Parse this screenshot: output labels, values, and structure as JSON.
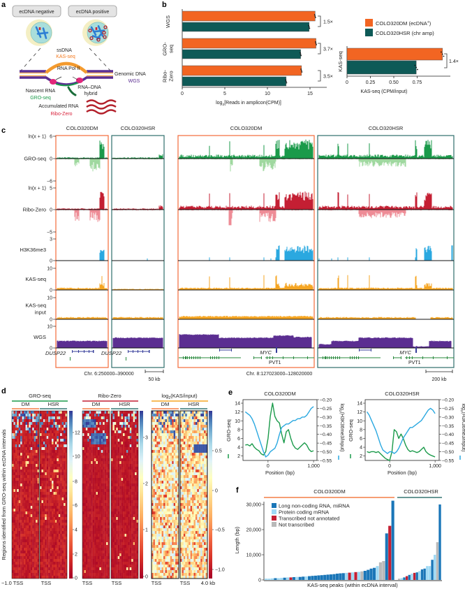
{
  "panel_labels": {
    "a": "a",
    "b": "b",
    "c": "c",
    "d": "d",
    "e": "e",
    "f": "f"
  },
  "colors": {
    "dm": "#f26522",
    "hsr": "#0e5a57",
    "gro": "#1a9a4a",
    "gro_neg": "#9fd89f",
    "ribo": "#c41f33",
    "ribo_neg": "#ee8c96",
    "h3k36me3": "#2aa8e0",
    "kas": "#f6a623",
    "wgs": "#5b2e91",
    "dm_box": "#f26a3a",
    "hsr_box": "#2e6e6c"
  },
  "panel_a": {
    "neg": "ecDNA negative",
    "pos": "ecDNA positive",
    "ssdna": "ssDNA",
    "kas": "KAS-seq",
    "polii": "RNA Pol II",
    "genomic": "Genomic DNA",
    "wgs": "WGS",
    "hybrid1": "RNA–DNA",
    "hybrid2": "hybrid",
    "nascent": "Nascent RNA",
    "gro": "GRO-seq",
    "accum": "Accumulated RNA",
    "ribo": "Ribo-Zero"
  },
  "chart_data": [
    {
      "id": "b-amplicon",
      "type": "bar",
      "orientation": "horizontal",
      "categories": [
        "WGS",
        "GRO-seq",
        "Ribo-Zero"
      ],
      "category_lines": [
        [
          "WGS"
        ],
        [
          "GRO-",
          "seq"
        ],
        [
          "Ribo-",
          "Zero"
        ]
      ],
      "series": [
        {
          "name": "COLO320DM (ecDNA+)",
          "legend": "COLO320DM (ecDNA",
          "legend_sup": "+",
          "legend_end": ")",
          "values": [
            15.6,
            15.7,
            14.0
          ]
        },
        {
          "name": "COLO320HSR (chr amp)",
          "legend": "COLO320HSR (chr amp)",
          "values": [
            14.9,
            13.9,
            12.2
          ]
        }
      ],
      "fold_changes": [
        "1.5×",
        "3.7×",
        "3.5×"
      ],
      "xlabel": [
        "log",
        "2",
        "[Reads in amplicon(CPM)]"
      ],
      "xlim": [
        0,
        17
      ],
      "xticks": [
        0,
        5,
        10,
        15
      ],
      "xtick_labels": [
        "0",
        "5",
        "10",
        "15"
      ],
      "legend": "top-right"
    },
    {
      "id": "b-kas",
      "type": "bar",
      "orientation": "horizontal",
      "categories": [
        "KAS-seq"
      ],
      "series": [
        {
          "name": "COLO320DM (ecDNA+)",
          "values": [
            1.02
          ]
        },
        {
          "name": "COLO320HSR (chr amp)",
          "values": [
            0.74
          ]
        }
      ],
      "fold_changes": [
        "1.4×"
      ],
      "xlabel": "KAS-seq (CPM/input)",
      "xlim": [
        0,
        1.05
      ],
      "xticks": [
        0,
        0.25,
        0.5,
        0.75
      ],
      "xtick_labels": [
        "0",
        "0.25",
        "0.50",
        "0.75"
      ]
    },
    {
      "id": "c-tracks",
      "type": "area",
      "columns": [
        "COLO320DM",
        "COLO320HSR",
        "COLO320DM",
        "COLO320HSR"
      ],
      "tracks": [
        {
          "name": "GRO-seq",
          "unit": "ln(x + 1)",
          "ticks": [
            "6",
            "0",
            "−6"
          ],
          "ylim": [
            -6,
            6
          ]
        },
        {
          "name": "Ribo-Zero",
          "unit": "ln(x + 1)",
          "ticks": [
            "5",
            "0",
            "−5"
          ],
          "ylim": [
            -5,
            5
          ]
        },
        {
          "name": "H3K36me3",
          "ticks": [
            "3",
            "0"
          ],
          "ylim": [
            0,
            3
          ]
        },
        {
          "name": "KAS-seq",
          "ticks": [
            "10",
            "0"
          ],
          "ylim": [
            0,
            10
          ]
        },
        {
          "name_lines": [
            "KAS-seq",
            "input"
          ],
          "ticks": [
            "10",
            "0"
          ],
          "ylim": [
            0,
            10
          ]
        },
        {
          "name": "WGS",
          "ticks": [
            "10",
            "0"
          ],
          "ylim": [
            0,
            10
          ]
        }
      ],
      "genes": {
        "dusp22": "DUSP22",
        "myc": "MYC",
        "pvt1": "PVT1"
      },
      "region_left": "Chr. 6:250000–390000",
      "scale_left": "50 kb",
      "region_right": "Chr. 8:127023000–128020000",
      "scale_right": "200 kb"
    },
    {
      "id": "d-heatmaps",
      "type": "heatmap",
      "ylabel": "Regions identified from GRO-seq within ecDNA intervals",
      "groups": [
        {
          "title": "GRO-seq",
          "subs": [
            "DM",
            "HSR"
          ],
          "colorbar_ticks": [
            "12",
            "10",
            "8",
            "6",
            "4",
            "2",
            "0"
          ],
          "range": [
            0,
            13.5
          ]
        },
        {
          "title": "Ribo-Zero",
          "subs": [
            "DM",
            "HSR"
          ],
          "colorbar_ticks": [
            "3",
            "2",
            "1",
            "0"
          ],
          "range": [
            0,
            3.5
          ]
        },
        {
          "title": [
            "log",
            "2",
            "(KAS/input)"
          ],
          "subs": [
            "DM",
            "HSR"
          ],
          "colorbar_ticks": [
            "0.5",
            "0",
            "−0.5",
            "−1.0"
          ],
          "range": [
            -1.2,
            0.85
          ]
        }
      ],
      "xlabels": [
        "−1.0",
        "TSS",
        "TSS",
        "TSS",
        "TSS",
        "TSS",
        "TSS",
        "4.0 kb"
      ]
    },
    {
      "id": "e-dm",
      "type": "line",
      "title": "COLO320DM",
      "xlabel": "Position (bp)",
      "ylabel_left": "GRO-seq",
      "ylabel_right": [
        "log",
        "2",
        "(H3K36me3/input)"
      ],
      "xlim": [
        -550,
        1075
      ],
      "ylim_left": [
        1,
        14.8
      ],
      "ylim_right": [
        -0.55,
        -0.2
      ],
      "xticks": [
        0,
        1000
      ],
      "xtick_labels": [
        "0",
        "1,000"
      ],
      "yticks_left": [
        "14",
        "12",
        "10",
        "8",
        "6",
        "4",
        "2"
      ],
      "yticks_right": [
        "−0.20",
        "−0.25",
        "−0.30",
        "−0.35",
        "−0.40",
        "−0.45",
        "−0.50",
        "−0.55"
      ],
      "x": [
        -500,
        -450,
        -400,
        -350,
        -300,
        -250,
        -200,
        -150,
        -100,
        -50,
        0,
        50,
        100,
        150,
        200,
        250,
        300,
        350,
        400,
        450,
        500,
        550,
        600,
        650,
        700,
        750,
        800,
        850,
        900,
        950,
        1000
      ],
      "series": [
        {
          "name": "GRO-seq",
          "axis": "left",
          "values": [
            4.5,
            4.6,
            4.3,
            4.8,
            4.0,
            3.5,
            3.2,
            2.5,
            2.2,
            3.0,
            6,
            11,
            14,
            11,
            10,
            9.5,
            7,
            5,
            7.5,
            8,
            6,
            4.5,
            3.8,
            3.5,
            4,
            4.5,
            5,
            4.5,
            3.5,
            3,
            3.2
          ]
        },
        {
          "name": "H3K36me3",
          "axis": "right",
          "values": [
            -0.27,
            -0.28,
            -0.29,
            -0.31,
            -0.34,
            -0.38,
            -0.42,
            -0.46,
            -0.5,
            -0.53,
            -0.52,
            -0.5,
            -0.49,
            -0.48,
            -0.45,
            -0.4,
            -0.36,
            -0.35,
            -0.34,
            -0.34,
            -0.33,
            -0.32,
            -0.32,
            -0.31,
            -0.31,
            -0.3,
            -0.3,
            -0.29,
            -0.27,
            -0.25,
            -0.24
          ]
        }
      ]
    },
    {
      "id": "e-hsr",
      "type": "line",
      "title": "COLO320HSR",
      "xlabel": "Position (bp)",
      "ylabel_left": "GRO-seq",
      "ylabel_right": [
        "log",
        "2",
        "(H3K36me3/input)"
      ],
      "xlim": [
        -540,
        1090
      ],
      "ylim_left": [
        1,
        14.8
      ],
      "ylim_right": [
        -0.55,
        -0.2
      ],
      "xticks": [
        0,
        1000
      ],
      "xtick_labels": [
        "0",
        "1,000"
      ],
      "yticks_left": [
        "14",
        "12",
        "10",
        "8",
        "6",
        "4",
        "2"
      ],
      "yticks_right": [
        "−0.20",
        "−0.25",
        "−0.30",
        "−0.35",
        "−0.40",
        "−0.45",
        "−0.50",
        "−0.55"
      ],
      "x": [
        -500,
        -450,
        -400,
        -350,
        -300,
        -250,
        -200,
        -150,
        -100,
        -50,
        0,
        50,
        100,
        150,
        200,
        250,
        300,
        350,
        400,
        450,
        500,
        550,
        600,
        650,
        700,
        750,
        800,
        850,
        900,
        950,
        1000
      ],
      "series": [
        {
          "name": "GRO-seq",
          "axis": "left",
          "values": [
            3,
            2.8,
            3,
            3,
            2.8,
            3,
            2.5,
            2,
            1.5,
            1.2,
            1,
            3,
            8,
            7.5,
            6,
            7,
            6,
            4.5,
            3.5,
            3,
            3.2,
            3,
            2.8,
            3,
            3.5,
            4,
            3,
            2.5,
            2.2,
            2,
            1.8
          ]
        },
        {
          "name": "H3K36me3",
          "axis": "right",
          "values": [
            -0.27,
            -0.29,
            -0.32,
            -0.35,
            -0.38,
            -0.42,
            -0.46,
            -0.49,
            -0.5,
            -0.51,
            -0.5,
            -0.5,
            -0.51,
            -0.5,
            -0.48,
            -0.45,
            -0.42,
            -0.4,
            -0.38,
            -0.36,
            -0.36,
            -0.35,
            -0.34,
            -0.33,
            -0.32,
            -0.3,
            -0.28,
            -0.26,
            -0.25,
            -0.26,
            -0.28
          ]
        }
      ]
    },
    {
      "id": "f-peaks",
      "type": "bar",
      "groups": [
        "COLO320DM",
        "COLO320HSR"
      ],
      "xlabel": "KAS-seq peaks (within ecDNA interval)",
      "ylabel": "Length (bp)",
      "ylim": [
        0,
        31500
      ],
      "yticks": [
        0,
        10000,
        20000,
        30000
      ],
      "ytick_labels": [
        "0",
        "10,000",
        "20,000",
        "30,000"
      ],
      "legend": [
        {
          "key": "lnc",
          "label": "Long non-coding RNA, miRNA",
          "color": "#1a76b8"
        },
        {
          "key": "pc",
          "label": "Protein coding mRNA",
          "color": "#9ed9f5"
        },
        {
          "key": "tna",
          "label": "Transcribed not annotated",
          "color": "#c41f33"
        },
        {
          "key": "nt",
          "label": "Not transcribed",
          "color": "#b9b9b9"
        }
      ],
      "dm": {
        "values": [
          500,
          500,
          600,
          700,
          700,
          800,
          900,
          1000,
          1000,
          1100,
          1200,
          1200,
          1300,
          1400,
          1500,
          1600,
          1700,
          1800,
          1900,
          2000,
          2100,
          2200,
          2300,
          2500,
          2600,
          2700,
          2800,
          2900,
          3000,
          3100,
          3200,
          3400,
          3600,
          4000,
          4500,
          4800,
          5500,
          7000,
          7500,
          18500,
          21500,
          31500
        ],
        "cats": [
          "pc",
          "pc",
          "pc",
          "lnc",
          "pc",
          "pc",
          "lnc",
          "pc",
          "tna",
          "lnc",
          "pc",
          "lnc",
          "lnc",
          "pc",
          "lnc",
          "lnc",
          "lnc",
          "lnc",
          "lnc",
          "lnc",
          "lnc",
          "lnc",
          "lnc",
          "lnc",
          "lnc",
          "lnc",
          "pc",
          "tna",
          "pc",
          "tna",
          "pc",
          "nt",
          "lnc",
          "lnc",
          "lnc",
          "lnc",
          "pc",
          "nt",
          "nt",
          "lnc",
          "tna",
          "lnc"
        ]
      },
      "hsr": {
        "values": [
          500,
          700,
          1000,
          1500,
          2000,
          2500,
          2800,
          3000,
          3500,
          4200,
          4500,
          5500,
          5500,
          8000,
          10000,
          15000,
          30000
        ],
        "cats": [
          "nt",
          "pc",
          "lnc",
          "tna",
          "lnc",
          "pc",
          "tna",
          "lnc",
          "pc",
          "lnc",
          "lnc",
          "pc",
          "pc",
          "lnc",
          "pc",
          "nt",
          "lnc"
        ]
      }
    }
  ]
}
